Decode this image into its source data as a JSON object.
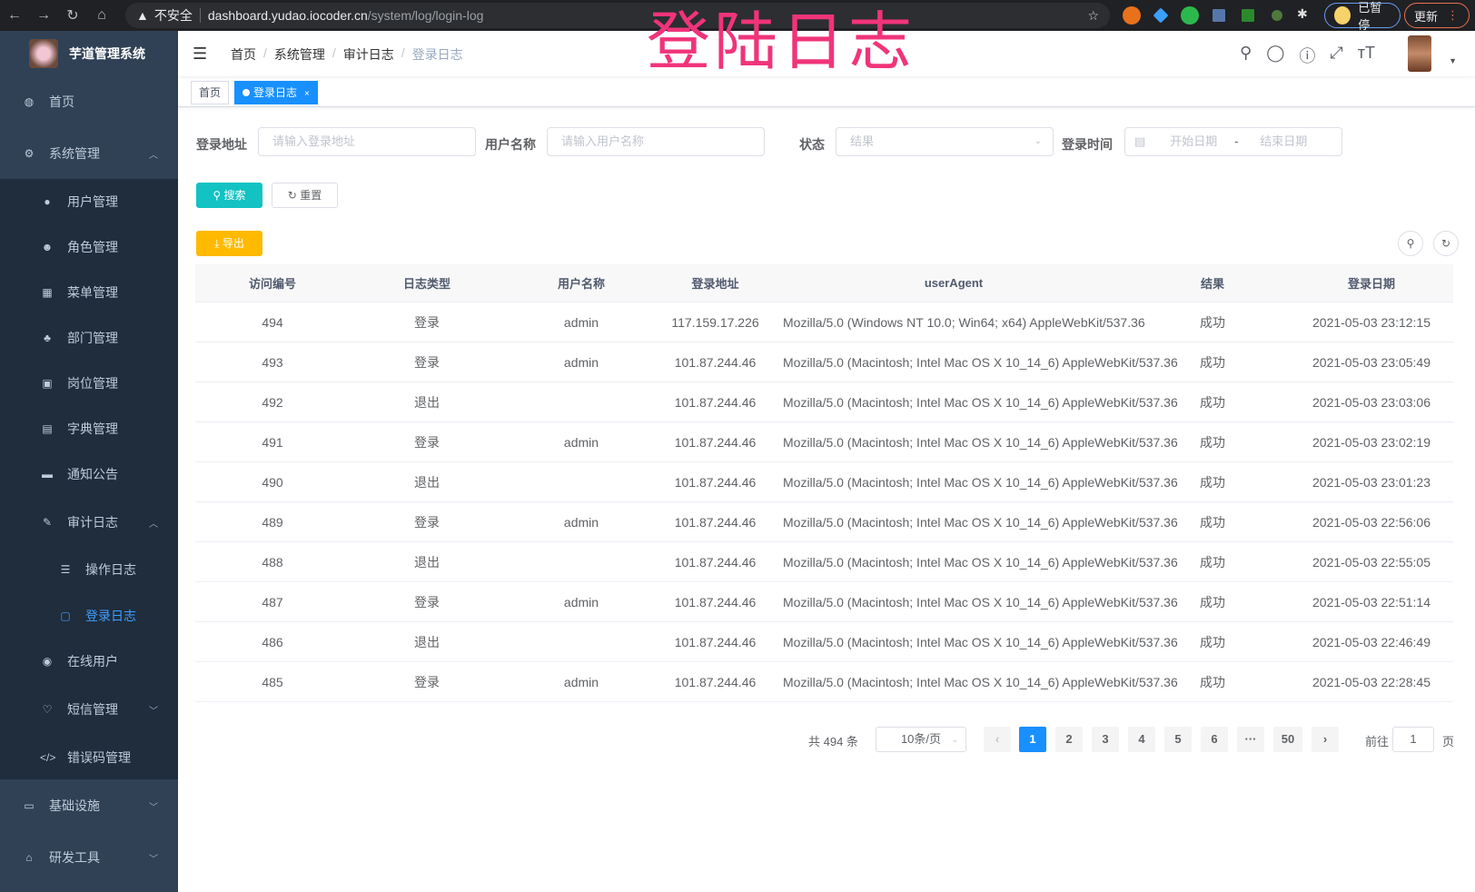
{
  "browser": {
    "insecure_label": "不安全",
    "url_host": "dashboard.yudao.iocoder.cn",
    "url_path": "/system/log/login-log",
    "paused_label": "已暂停",
    "update_label": "更新"
  },
  "overlay_title": "登陆日志",
  "sidebar": {
    "app_title": "芋道管理系统",
    "items": [
      {
        "label": "首页",
        "icon": "dashboard-icon"
      },
      {
        "label": "系统管理",
        "icon": "gear-icon",
        "expanded": true
      },
      {
        "label": "用户管理",
        "icon": "user-icon"
      },
      {
        "label": "角色管理",
        "icon": "peoples-icon"
      },
      {
        "label": "菜单管理",
        "icon": "tree-table-icon"
      },
      {
        "label": "部门管理",
        "icon": "tree-icon"
      },
      {
        "label": "岗位管理",
        "icon": "post-icon"
      },
      {
        "label": "字典管理",
        "icon": "dict-icon"
      },
      {
        "label": "通知公告",
        "icon": "message-icon"
      },
      {
        "label": "审计日志",
        "icon": "log-icon",
        "expanded": true
      },
      {
        "label": "操作日志",
        "icon": "form-icon"
      },
      {
        "label": "登录日志",
        "icon": "logininfor-icon",
        "active": true
      },
      {
        "label": "在线用户",
        "icon": "online-icon"
      },
      {
        "label": "短信管理",
        "icon": "validcode-icon"
      },
      {
        "label": "错误码管理",
        "icon": "code-icon"
      },
      {
        "label": "基础设施",
        "icon": "monitor-icon"
      },
      {
        "label": "研发工具",
        "icon": "tool-icon"
      }
    ]
  },
  "navbar": {
    "breadcrumb": [
      "首页",
      "系统管理",
      "审计日志",
      "登录日志"
    ]
  },
  "tags": [
    {
      "label": "首页"
    },
    {
      "label": "登录日志",
      "active": true
    }
  ],
  "filters": {
    "address_label": "登录地址",
    "address_placeholder": "请输入登录地址",
    "username_label": "用户名称",
    "username_placeholder": "请输入用户名称",
    "status_label": "状态",
    "status_placeholder": "结果",
    "time_label": "登录时间",
    "start_placeholder": "开始日期",
    "range_sep": "-",
    "end_placeholder": "结束日期",
    "search_button": "搜索",
    "reset_button": "重置",
    "export_button": "导出"
  },
  "colors": {
    "accent": "#1890ff",
    "search": "#13c2c2",
    "export": "#ffba00",
    "sidebar": "#304156",
    "overlay": "#f0347a"
  },
  "table": {
    "columns": [
      "访问编号",
      "日志类型",
      "用户名称",
      "登录地址",
      "userAgent",
      "结果",
      "登录日期"
    ],
    "rows": [
      [
        "494",
        "登录",
        "admin",
        "117.159.17.226",
        "Mozilla/5.0 (Windows NT 10.0; Win64; x64) AppleWebKit/537.36",
        "成功",
        "2021-05-03 23:12:15"
      ],
      [
        "493",
        "登录",
        "admin",
        "101.87.244.46",
        "Mozilla/5.0 (Macintosh; Intel Mac OS X 10_14_6) AppleWebKit/537.36",
        "成功",
        "2021-05-03 23:05:49"
      ],
      [
        "492",
        "退出",
        "",
        "101.87.244.46",
        "Mozilla/5.0 (Macintosh; Intel Mac OS X 10_14_6) AppleWebKit/537.36",
        "成功",
        "2021-05-03 23:03:06"
      ],
      [
        "491",
        "登录",
        "admin",
        "101.87.244.46",
        "Mozilla/5.0 (Macintosh; Intel Mac OS X 10_14_6) AppleWebKit/537.36",
        "成功",
        "2021-05-03 23:02:19"
      ],
      [
        "490",
        "退出",
        "",
        "101.87.244.46",
        "Mozilla/5.0 (Macintosh; Intel Mac OS X 10_14_6) AppleWebKit/537.36",
        "成功",
        "2021-05-03 23:01:23"
      ],
      [
        "489",
        "登录",
        "admin",
        "101.87.244.46",
        "Mozilla/5.0 (Macintosh; Intel Mac OS X 10_14_6) AppleWebKit/537.36",
        "成功",
        "2021-05-03 22:56:06"
      ],
      [
        "488",
        "退出",
        "",
        "101.87.244.46",
        "Mozilla/5.0 (Macintosh; Intel Mac OS X 10_14_6) AppleWebKit/537.36",
        "成功",
        "2021-05-03 22:55:05"
      ],
      [
        "487",
        "登录",
        "admin",
        "101.87.244.46",
        "Mozilla/5.0 (Macintosh; Intel Mac OS X 10_14_6) AppleWebKit/537.36",
        "成功",
        "2021-05-03 22:51:14"
      ],
      [
        "486",
        "退出",
        "",
        "101.87.244.46",
        "Mozilla/5.0 (Macintosh; Intel Mac OS X 10_14_6) AppleWebKit/537.36",
        "成功",
        "2021-05-03 22:46:49"
      ],
      [
        "485",
        "登录",
        "admin",
        "101.87.244.46",
        "Mozilla/5.0 (Macintosh; Intel Mac OS X 10_14_6) AppleWebKit/537.36",
        "成功",
        "2021-05-03 22:28:45"
      ]
    ]
  },
  "pagination": {
    "total_text": "共 494 条",
    "page_size": "10条/页",
    "pages": [
      "1",
      "2",
      "3",
      "4",
      "5",
      "6",
      "···",
      "50"
    ],
    "current": "1",
    "goto_label": "前往",
    "goto_value": "1",
    "goto_suffix": "页"
  }
}
